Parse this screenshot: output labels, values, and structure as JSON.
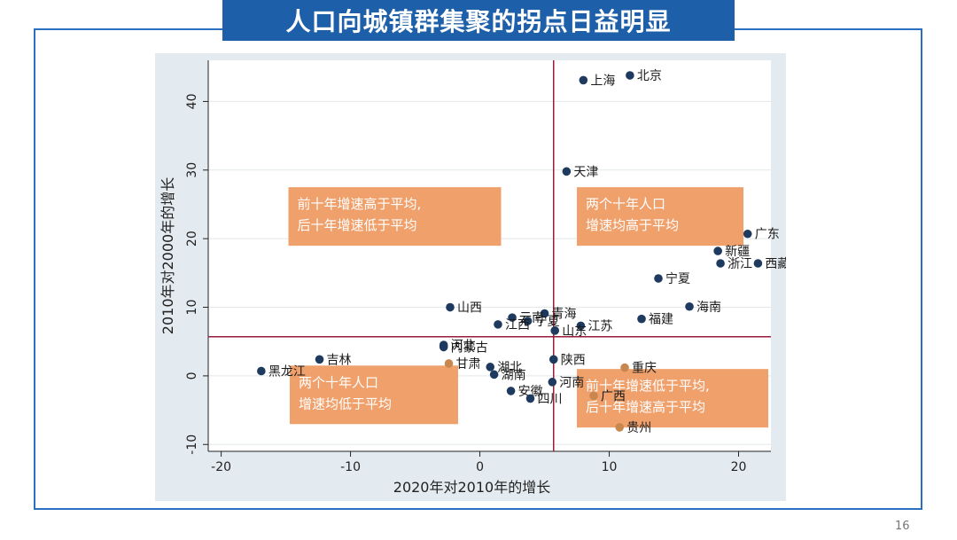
{
  "slide": {
    "title": "人口向城镇群集聚的拐点日益明显",
    "page_number": "16"
  },
  "colors": {
    "title_bg": "#1d5fa8",
    "frame": "#2a6fc0",
    "plot_bg": "#eaf0f4",
    "point": "#1f3a5f",
    "point_highlight": "#c8874f",
    "ref_line": "#9b1b3a",
    "annotation_box": "#f0a06b",
    "annotation_text": "#ffffff"
  },
  "chart_data": {
    "type": "scatter",
    "xlabel": "2020年对2010年的增长",
    "ylabel": "2010年对2000年的增长",
    "xlim": [
      -21,
      22.5
    ],
    "ylim": [
      -11,
      46
    ],
    "xticks": [
      -20,
      -10,
      0,
      10,
      20
    ],
    "yticks": [
      -10,
      0,
      10,
      20,
      30,
      40
    ],
    "grid": "horizontal",
    "ref_lines": {
      "x": 5.7,
      "y": 5.7
    },
    "points": [
      {
        "label": "北京",
        "x": 11.6,
        "y": 43.8
      },
      {
        "label": "上海",
        "x": 8.0,
        "y": 43.1
      },
      {
        "label": "天津",
        "x": 6.7,
        "y": 29.8
      },
      {
        "label": "广东",
        "x": 20.7,
        "y": 20.7
      },
      {
        "label": "新疆",
        "x": 18.4,
        "y": 18.2
      },
      {
        "label": "浙江",
        "x": 18.6,
        "y": 16.4
      },
      {
        "label": "西藏",
        "x": 21.5,
        "y": 16.4
      },
      {
        "label": "宁夏",
        "x": 13.8,
        "y": 14.2
      },
      {
        "label": "海南",
        "x": 16.2,
        "y": 10.1
      },
      {
        "label": "福建",
        "x": 12.5,
        "y": 8.3
      },
      {
        "label": "山西",
        "x": -2.3,
        "y": 10.0
      },
      {
        "label": "青海",
        "x": 5.0,
        "y": 9.1
      },
      {
        "label": "云南",
        "x": 2.5,
        "y": 8.5
      },
      {
        "label": "宁夏",
        "x": 3.7,
        "y": 8.0
      },
      {
        "label": "江西",
        "x": 1.4,
        "y": 7.5
      },
      {
        "label": "江苏",
        "x": 7.8,
        "y": 7.3
      },
      {
        "label": "山东",
        "x": 5.8,
        "y": 6.6
      },
      {
        "label": "河北",
        "x": -2.8,
        "y": 4.5
      },
      {
        "label": "内蒙古",
        "x": -2.8,
        "y": 4.2
      },
      {
        "label": "甘肃",
        "x": -2.4,
        "y": 1.8,
        "highlight": true
      },
      {
        "label": "陕西",
        "x": 5.7,
        "y": 2.4
      },
      {
        "label": "湖北",
        "x": 0.8,
        "y": 1.3
      },
      {
        "label": "湖南",
        "x": 1.1,
        "y": 0.2
      },
      {
        "label": "重庆",
        "x": 11.2,
        "y": 1.2,
        "highlight": true
      },
      {
        "label": "河南",
        "x": 5.6,
        "y": -0.9
      },
      {
        "label": "安徽",
        "x": 2.4,
        "y": -2.2
      },
      {
        "label": "四川",
        "x": 3.9,
        "y": -3.3
      },
      {
        "label": "广西",
        "x": 8.8,
        "y": -2.9,
        "highlight": true
      },
      {
        "label": "贵州",
        "x": 10.8,
        "y": -7.5,
        "highlight": true
      },
      {
        "label": "吉林",
        "x": -12.4,
        "y": 2.4
      },
      {
        "label": "黑龙江",
        "x": -16.9,
        "y": 0.7
      }
    ],
    "annotations": [
      {
        "position": "top-left",
        "lines": [
          "前十年增速高于平均,",
          "后十年增速低于平均"
        ]
      },
      {
        "position": "top-right",
        "lines": [
          "两个十年人口",
          "增速均高于平均"
        ]
      },
      {
        "position": "bottom-left",
        "lines": [
          "两个十年人口",
          "增速均低于平均"
        ]
      },
      {
        "position": "bottom-right",
        "lines": [
          "前十年增速低于平均,",
          "后十年增速高于平均"
        ]
      }
    ]
  }
}
